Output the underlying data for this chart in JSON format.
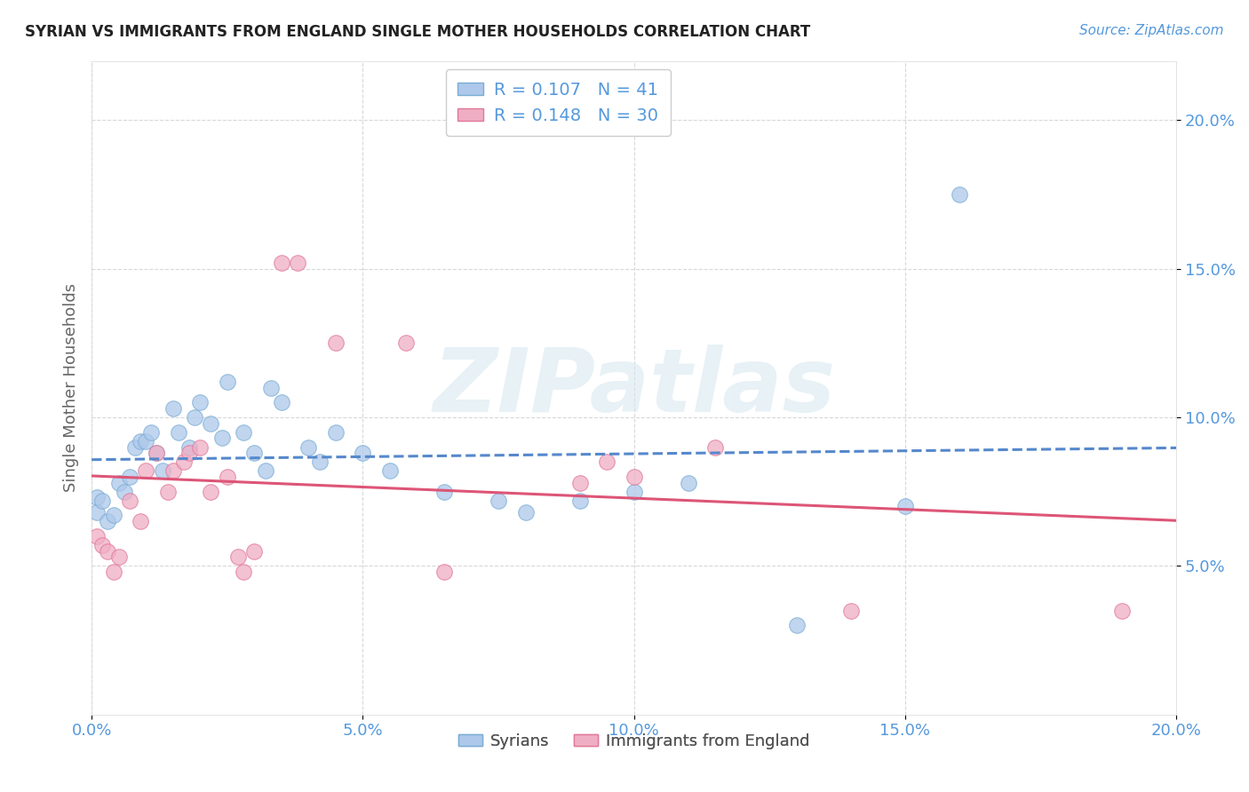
{
  "title": "SYRIAN VS IMMIGRANTS FROM ENGLAND SINGLE MOTHER HOUSEHOLDS CORRELATION CHART",
  "source": "Source: ZipAtlas.com",
  "ylabel": "Single Mother Households",
  "watermark": "ZIPatlas",
  "xlim": [
    0.0,
    0.2
  ],
  "ylim": [
    0.0,
    0.22
  ],
  "xticks": [
    0.0,
    0.05,
    0.1,
    0.15,
    0.2
  ],
  "yticks": [
    0.05,
    0.1,
    0.15,
    0.2
  ],
  "xticklabels": [
    "0.0%",
    "5.0%",
    "10.0%",
    "15.0%",
    "20.0%"
  ],
  "yticklabels_right": [
    "5.0%",
    "10.0%",
    "15.0%",
    "20.0%"
  ],
  "syrians_color": "#adc8ea",
  "england_color": "#f0aec4",
  "syrians_edge_color": "#7aadd4",
  "england_edge_color": "#e07898",
  "syrians_line_color": "#5588cc",
  "england_line_color": "#dd5577",
  "legend_syrians_R": 0.107,
  "legend_syrians_N": 41,
  "legend_england_R": 0.148,
  "legend_england_N": 30,
  "syrians_x": [
    0.001,
    0.001,
    0.002,
    0.003,
    0.004,
    0.005,
    0.006,
    0.007,
    0.008,
    0.009,
    0.01,
    0.011,
    0.012,
    0.013,
    0.015,
    0.016,
    0.018,
    0.019,
    0.02,
    0.022,
    0.024,
    0.025,
    0.028,
    0.03,
    0.032,
    0.033,
    0.035,
    0.04,
    0.042,
    0.045,
    0.05,
    0.055,
    0.065,
    0.075,
    0.08,
    0.09,
    0.1,
    0.11,
    0.13,
    0.15,
    0.16
  ],
  "syrians_y": [
    0.073,
    0.068,
    0.072,
    0.065,
    0.067,
    0.078,
    0.075,
    0.08,
    0.09,
    0.092,
    0.092,
    0.095,
    0.088,
    0.082,
    0.103,
    0.095,
    0.09,
    0.1,
    0.105,
    0.098,
    0.093,
    0.112,
    0.095,
    0.088,
    0.082,
    0.11,
    0.105,
    0.09,
    0.085,
    0.095,
    0.088,
    0.082,
    0.075,
    0.072,
    0.068,
    0.072,
    0.075,
    0.078,
    0.03,
    0.07,
    0.175
  ],
  "england_x": [
    0.001,
    0.002,
    0.003,
    0.004,
    0.005,
    0.007,
    0.009,
    0.01,
    0.012,
    0.014,
    0.015,
    0.017,
    0.018,
    0.02,
    0.022,
    0.025,
    0.027,
    0.028,
    0.03,
    0.035,
    0.038,
    0.045,
    0.058,
    0.065,
    0.09,
    0.095,
    0.1,
    0.115,
    0.14,
    0.19
  ],
  "england_y": [
    0.06,
    0.057,
    0.055,
    0.048,
    0.053,
    0.072,
    0.065,
    0.082,
    0.088,
    0.075,
    0.082,
    0.085,
    0.088,
    0.09,
    0.075,
    0.08,
    0.053,
    0.048,
    0.055,
    0.152,
    0.152,
    0.125,
    0.125,
    0.048,
    0.078,
    0.085,
    0.08,
    0.09,
    0.035,
    0.035
  ],
  "background_color": "#ffffff",
  "grid_color": "#d8d8d8"
}
